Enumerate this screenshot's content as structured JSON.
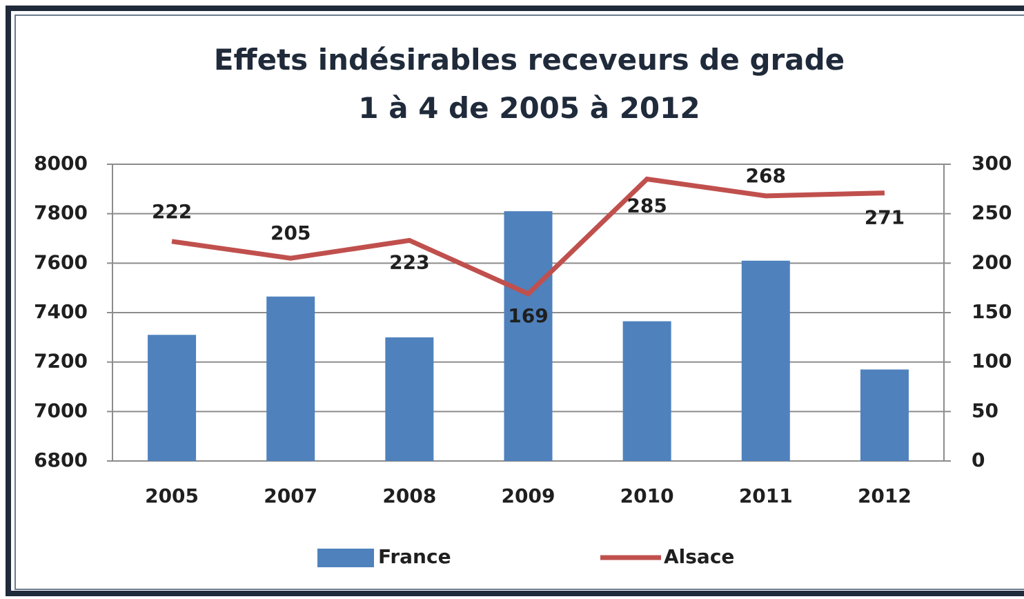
{
  "chart_data": {
    "type": "bar-line",
    "title": "Effets indésirables receveurs de grade 1 à 4 de 2005 à 2012",
    "categories": [
      "2005",
      "2007",
      "2008",
      "2009",
      "2010",
      "2011",
      "2012"
    ],
    "series": [
      {
        "name": "France",
        "type": "bar",
        "color": "#4f81bd",
        "values": [
          7310,
          7465,
          7300,
          7810,
          7365,
          7610,
          7170
        ]
      },
      {
        "name": "Alsace",
        "type": "line",
        "axis": "y2",
        "color": "#c0504d",
        "values": [
          222,
          205,
          223,
          169,
          285,
          268,
          271
        ]
      }
    ],
    "ylim": [
      6800,
      8000
    ],
    "yticks": [
      6800,
      7000,
      7200,
      7400,
      7600,
      7800,
      8000
    ],
    "y2lim": [
      0,
      300
    ],
    "y2ticks": [
      0,
      50,
      100,
      150,
      200,
      250,
      300
    ],
    "grid": true,
    "legend": "bottom"
  }
}
